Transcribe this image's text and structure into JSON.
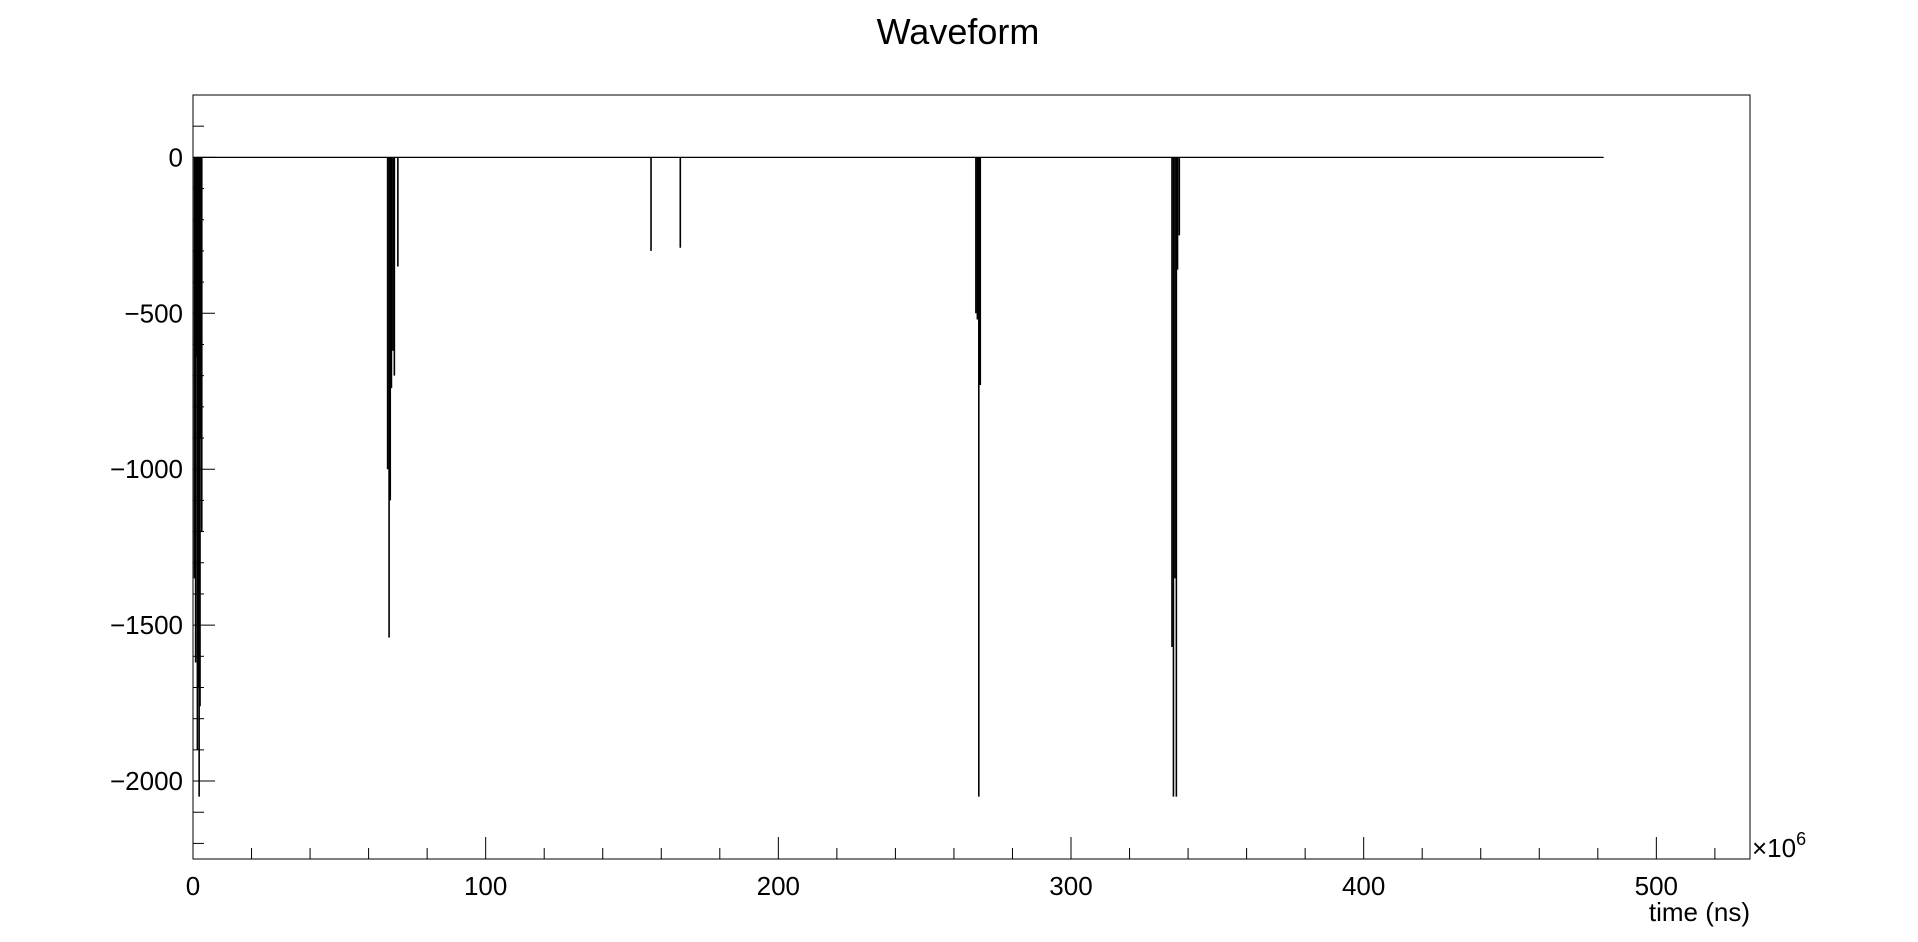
{
  "chart_data": {
    "type": "line",
    "title": "Waveform",
    "xlabel": "time (ns)",
    "ylabel": "",
    "x_exponent_label": "×10",
    "x_exponent_power": "6",
    "xlim": [
      0,
      532
    ],
    "ylim": [
      -2250,
      200
    ],
    "x_ticks": [
      0,
      100,
      200,
      300,
      400,
      500
    ],
    "x_tick_labels": [
      "0",
      "100",
      "200",
      "300",
      "400",
      "500"
    ],
    "y_ticks": [
      0,
      -500,
      -1000,
      -1500,
      -2000
    ],
    "y_tick_labels": [
      "0",
      "−500",
      "−1000",
      "−1500",
      "−2000"
    ],
    "grid": false,
    "legend": "none",
    "line_color": "#000000",
    "baseline": {
      "y": 0,
      "x_start": 0,
      "x_end": 482
    },
    "pulses": [
      {
        "x": 0.5,
        "min": -1350
      },
      {
        "x": 0.9,
        "min": -1620
      },
      {
        "x": 1.2,
        "min": -640
      },
      {
        "x": 1.5,
        "min": -1900
      },
      {
        "x": 1.8,
        "min": -1700
      },
      {
        "x": 2.1,
        "min": -2050
      },
      {
        "x": 2.4,
        "min": -1760
      },
      {
        "x": 2.7,
        "min": -900
      },
      {
        "x": 3.0,
        "min": -1200
      },
      {
        "x": 66.5,
        "min": -1000
      },
      {
        "x": 67.0,
        "min": -1540
      },
      {
        "x": 67.4,
        "min": -1100
      },
      {
        "x": 67.8,
        "min": -740
      },
      {
        "x": 68.3,
        "min": -620
      },
      {
        "x": 68.8,
        "min": -700
      },
      {
        "x": 70.0,
        "min": -350
      },
      {
        "x": 156.5,
        "min": -300
      },
      {
        "x": 166.5,
        "min": -290
      },
      {
        "x": 267.5,
        "min": -500
      },
      {
        "x": 268.0,
        "min": -520
      },
      {
        "x": 268.5,
        "min": -2050
      },
      {
        "x": 269.0,
        "min": -730
      },
      {
        "x": 334.5,
        "min": -1570
      },
      {
        "x": 335.0,
        "min": -2050
      },
      {
        "x": 335.5,
        "min": -1350
      },
      {
        "x": 336.0,
        "min": -2050
      },
      {
        "x": 336.4,
        "min": -360
      },
      {
        "x": 337.0,
        "min": -250
      }
    ]
  }
}
